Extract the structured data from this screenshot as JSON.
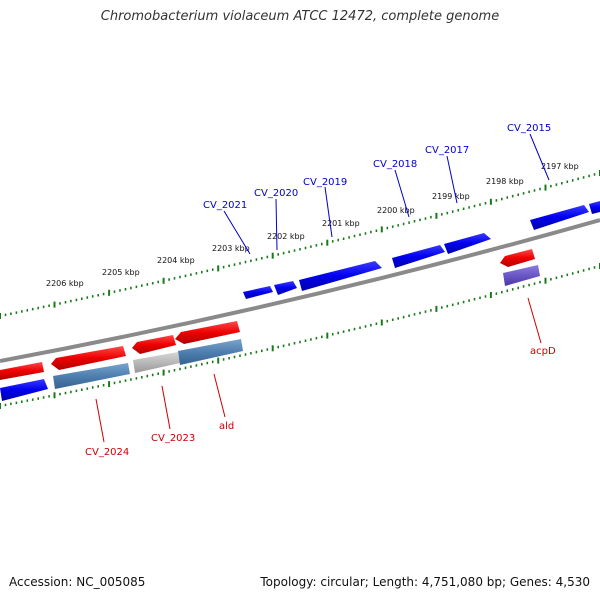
{
  "title": "Chromobacterium violaceum ATCC 12472, complete genome",
  "footer": {
    "accession": "Accession: NC_005085",
    "summary": "Topology: circular; Length: 4,751,080 bp; Genes: 4,530"
  },
  "colors": {
    "forward_cds": "#0000ee",
    "reverse_cds": "#ee0000",
    "forward_label": "#0000cc",
    "reverse_label": "#cc0000",
    "backbone": "#808080",
    "tick": "#1a7a1a",
    "blast_hit": "#4f7fb0",
    "gray_hit": "#b0b0b0",
    "purple_hit": "#6a55c8"
  },
  "kbp_ticks": [
    "2197 kbp",
    "2198 kbp",
    "2199 kbp",
    "2200 kbp",
    "2201 kbp",
    "2202 kbp",
    "2203 kbp",
    "2204 kbp",
    "2205 kbp",
    "2206 kbp"
  ],
  "forward_genes": [
    "CV_2015",
    "CV_2017",
    "CV_2018",
    "CV_2019",
    "CV_2020",
    "CV_2021"
  ],
  "reverse_genes": [
    "acpD",
    "ald",
    "CV_2023",
    "CV_2024"
  ]
}
